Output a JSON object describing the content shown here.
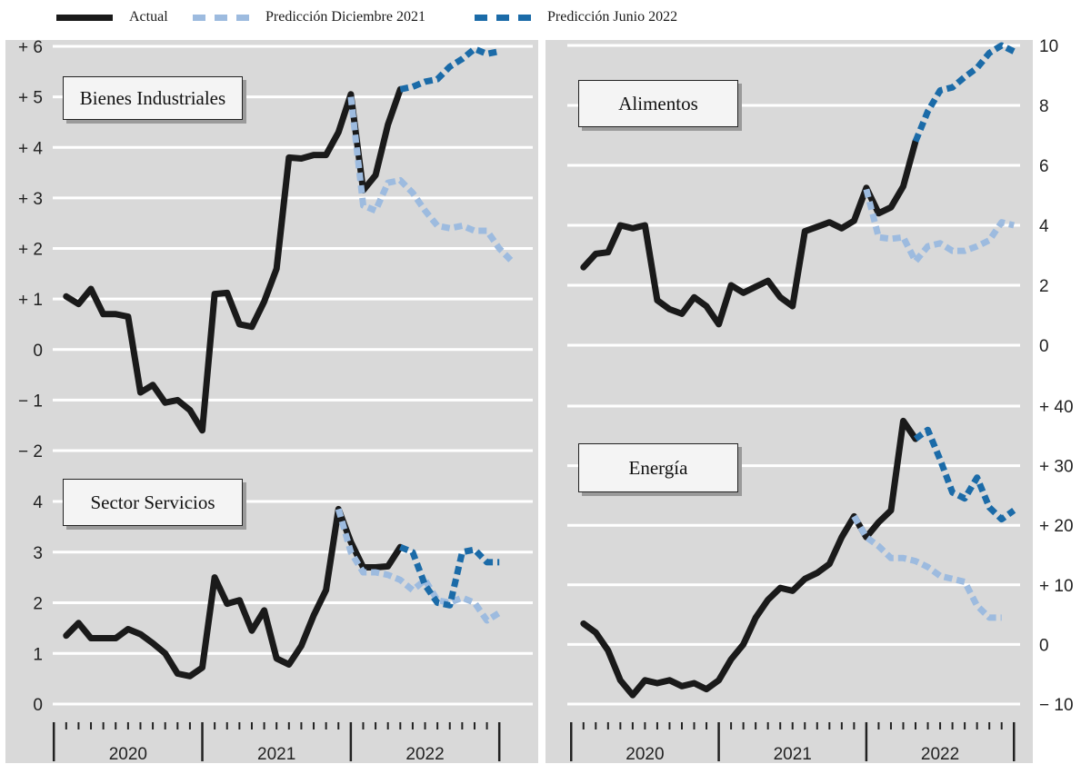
{
  "legend": {
    "actual": "Actual",
    "dec2021": "Predicción Diciembre 2021",
    "jun2022": "Predicción Junio 2022"
  },
  "colors": {
    "panel_bg": "#d9d9d9",
    "grid": "#ffffff",
    "actual": "#1a1a1a",
    "dec2021": "#9dbbdf",
    "jun2022": "#1b6ba8"
  },
  "x_axis": {
    "months_start": "2020-01",
    "years": [
      "2020",
      "2021",
      "2022"
    ]
  },
  "chart_data": [
    {
      "type": "line",
      "title": "Bienes Industriales",
      "ylim": [
        -2,
        6
      ],
      "y_ticks": [
        "+ 6",
        "+ 5",
        "+ 4",
        "+ 3",
        "+ 2",
        "+ 1",
        "0",
        "− 1",
        "− 2"
      ],
      "series": [
        {
          "name": "Actual",
          "start_index": 0,
          "values": [
            1.05,
            0.9,
            1.2,
            0.7,
            0.7,
            0.65,
            -0.85,
            -0.7,
            -1.05,
            -1.0,
            -1.2,
            -1.6,
            1.1,
            1.12,
            0.5,
            0.45,
            0.95,
            1.6,
            3.8,
            3.78,
            3.85,
            3.85,
            4.3,
            5.05,
            3.15,
            3.45,
            4.45,
            5.15
          ]
        },
        {
          "name": "Predicción Diciembre 2021",
          "start_index": 23,
          "values": [
            5.0,
            2.85,
            2.75,
            3.3,
            3.35,
            3.1,
            2.75,
            2.45,
            2.4,
            2.45,
            2.35,
            2.35,
            2.0,
            1.75
          ]
        },
        {
          "name": "Predicción Junio 2022",
          "start_index": 27,
          "values": [
            5.15,
            5.2,
            5.3,
            5.35,
            5.6,
            5.75,
            5.95,
            5.85,
            5.9
          ]
        }
      ]
    },
    {
      "type": "line",
      "title": "Alimentos",
      "ylim": [
        0,
        10
      ],
      "y_ticks": [
        "10",
        "8",
        "6",
        "4",
        "2",
        "0"
      ],
      "series": [
        {
          "name": "Actual",
          "start_index": 0,
          "values": [
            2.6,
            3.05,
            3.1,
            4.0,
            3.9,
            4.0,
            1.5,
            1.2,
            1.05,
            1.6,
            1.3,
            0.7,
            2.0,
            1.75,
            1.95,
            2.15,
            1.6,
            1.3,
            3.8,
            3.95,
            4.1,
            3.9,
            4.15,
            5.25,
            4.4,
            4.6,
            5.3,
            6.8
          ]
        },
        {
          "name": "Predicción Diciembre 2021",
          "start_index": 23,
          "values": [
            5.2,
            3.6,
            3.55,
            3.6,
            2.8,
            3.3,
            3.4,
            3.15,
            3.15,
            3.3,
            3.5,
            4.1,
            4.0
          ]
        },
        {
          "name": "Predicción Junio 2022",
          "start_index": 27,
          "values": [
            6.8,
            7.8,
            8.5,
            8.6,
            8.95,
            9.25,
            9.75,
            10.0,
            9.8
          ]
        }
      ]
    },
    {
      "type": "line",
      "title": "Sector Servicios",
      "ylim": [
        0,
        4
      ],
      "y_ticks": [
        "4",
        "3",
        "2",
        "1",
        "0"
      ],
      "series": [
        {
          "name": "Actual",
          "start_index": 0,
          "values": [
            1.35,
            1.6,
            1.3,
            1.3,
            1.3,
            1.48,
            1.38,
            1.2,
            1.0,
            0.6,
            0.55,
            0.72,
            2.5,
            1.98,
            2.05,
            1.45,
            1.85,
            0.9,
            0.78,
            1.15,
            1.75,
            2.25,
            3.85,
            3.2,
            2.7,
            2.7,
            2.72,
            3.1
          ]
        },
        {
          "name": "Predicción Diciembre 2021",
          "start_index": 22,
          "values": [
            3.85,
            3.0,
            2.6,
            2.6,
            2.55,
            2.45,
            2.25,
            2.45,
            2.05,
            2.0,
            2.1,
            2.0,
            1.65,
            1.8
          ]
        },
        {
          "name": "Predicción Junio 2022",
          "start_index": 27,
          "values": [
            3.1,
            3.0,
            2.35,
            2.0,
            1.95,
            3.0,
            3.05,
            2.8,
            2.8
          ]
        }
      ]
    },
    {
      "type": "line",
      "title": "Energía",
      "ylim": [
        -10,
        40
      ],
      "y_ticks": [
        "+ 40",
        "+ 30",
        "+ 20",
        "+ 10",
        "0",
        "− 10"
      ],
      "series": [
        {
          "name": "Actual",
          "start_index": 0,
          "values": [
            3.5,
            2.0,
            -1.0,
            -6.0,
            -8.5,
            -6.0,
            -6.5,
            -6.0,
            -7.0,
            -6.5,
            -7.5,
            -6.0,
            -2.5,
            0.0,
            4.5,
            7.5,
            9.5,
            9.0,
            11.0,
            12.0,
            13.5,
            18.0,
            21.5,
            18.0,
            20.5,
            22.5,
            37.5,
            34.5
          ]
        },
        {
          "name": "Predicción Diciembre 2021",
          "start_index": 22,
          "values": [
            21.5,
            18.0,
            16.5,
            14.5,
            14.5,
            14.0,
            13.0,
            11.5,
            11.0,
            10.5,
            6.5,
            4.5,
            4.5
          ]
        },
        {
          "name": "Predicción Junio 2022",
          "start_index": 27,
          "values": [
            34.5,
            36.0,
            31.0,
            25.5,
            24.5,
            28.0,
            23.0,
            21.0,
            22.5
          ]
        }
      ]
    }
  ]
}
